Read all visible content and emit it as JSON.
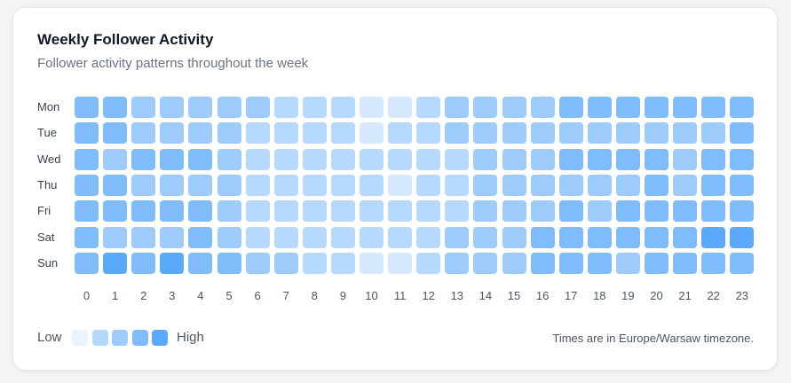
{
  "title": "Weekly Follower Activity",
  "subtitle": "Follower activity patterns throughout the week",
  "legend": {
    "low": "Low",
    "high": "High"
  },
  "timezone_note": "Times are in Europe/Warsaw timezone.",
  "colors": [
    "#eaf4ff",
    "#d6e9fe",
    "#b5d8fd",
    "#9ccbfc",
    "#7fbcfb",
    "#5aa9fa"
  ],
  "chart_data": {
    "type": "heatmap",
    "title": "Weekly Follower Activity",
    "subtitle": "Follower activity patterns throughout the week",
    "y_categories": [
      "Mon",
      "Tue",
      "Wed",
      "Thu",
      "Fri",
      "Sat",
      "Sun"
    ],
    "x_categories": [
      "0",
      "1",
      "2",
      "3",
      "4",
      "5",
      "6",
      "7",
      "8",
      "9",
      "10",
      "11",
      "12",
      "13",
      "14",
      "15",
      "16",
      "17",
      "18",
      "19",
      "20",
      "21",
      "22",
      "23"
    ],
    "scale": {
      "min": 0,
      "max": 5,
      "low_label": "Low",
      "high_label": "High"
    },
    "values": [
      [
        4,
        4,
        3,
        3,
        3,
        3,
        3,
        2,
        2,
        2,
        1,
        1,
        2,
        3,
        3,
        3,
        3,
        4,
        4,
        4,
        4,
        4,
        4,
        4
      ],
      [
        4,
        4,
        3,
        3,
        3,
        3,
        2,
        2,
        2,
        2,
        1,
        2,
        2,
        3,
        3,
        3,
        3,
        3,
        3,
        3,
        3,
        3,
        3,
        4
      ],
      [
        4,
        3,
        4,
        4,
        4,
        3,
        2,
        2,
        2,
        2,
        2,
        2,
        2,
        2,
        3,
        3,
        3,
        4,
        4,
        4,
        4,
        3,
        4,
        4
      ],
      [
        4,
        4,
        3,
        3,
        3,
        3,
        2,
        2,
        2,
        2,
        2,
        1,
        2,
        2,
        3,
        3,
        3,
        3,
        3,
        3,
        4,
        3,
        4,
        4
      ],
      [
        4,
        4,
        4,
        4,
        4,
        3,
        2,
        2,
        2,
        2,
        2,
        2,
        2,
        2,
        3,
        3,
        3,
        4,
        3,
        4,
        4,
        4,
        4,
        4
      ],
      [
        4,
        3,
        3,
        3,
        4,
        3,
        2,
        2,
        2,
        2,
        2,
        2,
        2,
        3,
        3,
        3,
        4,
        4,
        4,
        4,
        4,
        4,
        5,
        5
      ],
      [
        4,
        5,
        4,
        5,
        4,
        4,
        3,
        3,
        2,
        2,
        1,
        1,
        2,
        3,
        3,
        3,
        4,
        4,
        4,
        3,
        4,
        4,
        4,
        4
      ]
    ]
  }
}
